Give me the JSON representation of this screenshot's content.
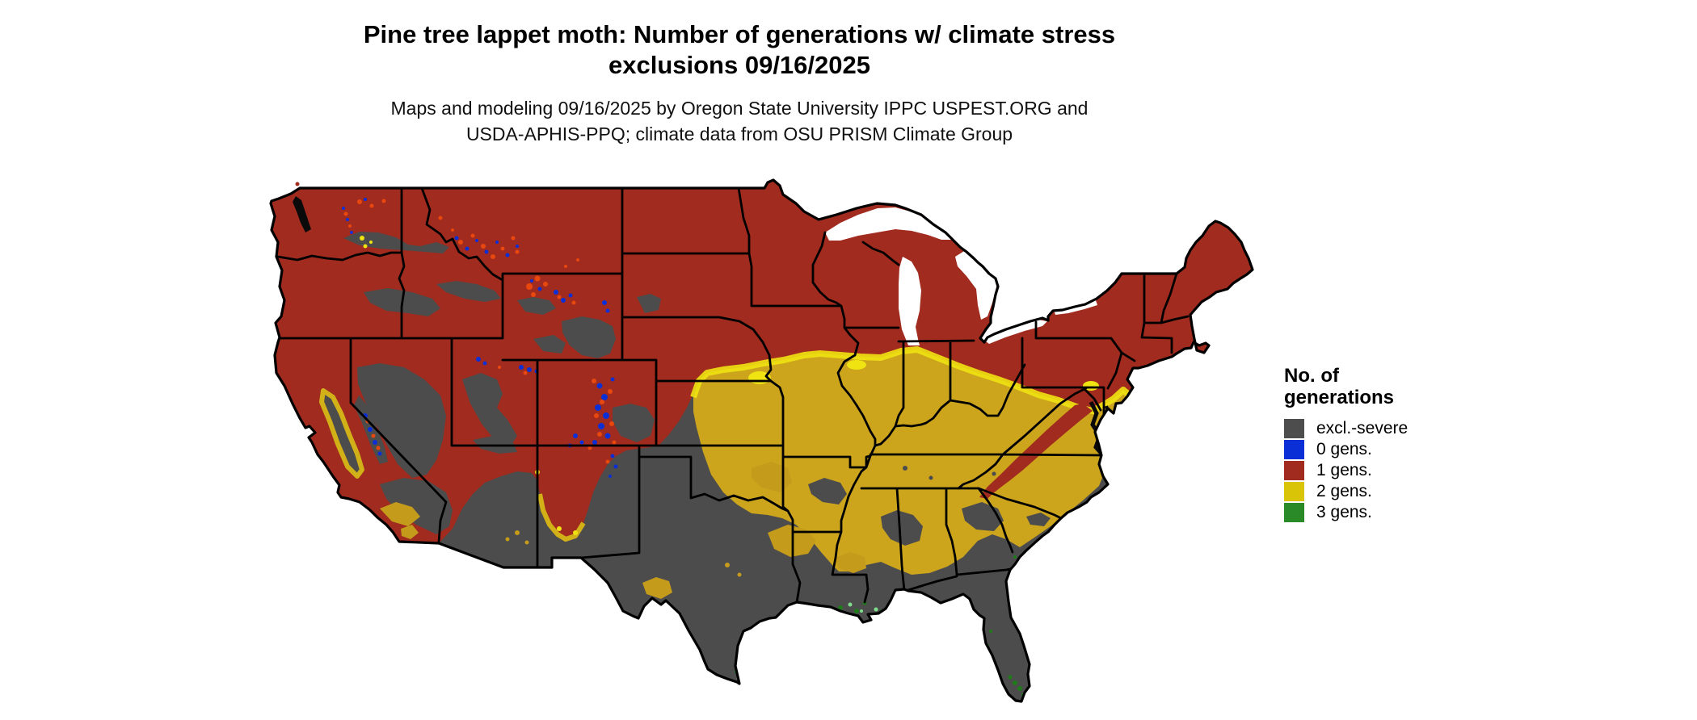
{
  "title": {
    "line1": "Pine tree lappet moth: Number of generations w/ climate stress",
    "line2": "exclusions 09/16/2025"
  },
  "subtitle": {
    "line1": "Maps and modeling 09/16/2025 by Oregon State University IPPC USPEST.ORG and",
    "line2": "USDA-APHIS-PPQ; climate data from OSU PRISM Climate Group"
  },
  "map": {
    "alt": "Map of the continental United States showing modeled number of pine tree lappet moth generations with climate stress exclusions",
    "date": "09/16/2025",
    "colors": {
      "excl_severe": "#4C4C4C",
      "gens0": "#0B2FD6",
      "gens1": "#A02B1E",
      "gens2": "#CCA51D",
      "gens2_bright": "#EFE312",
      "gens3": "#1F7A1A",
      "gens3_light": "#7FDC8C",
      "border": "#000000",
      "water": "#FFFFFF"
    }
  },
  "legend": {
    "title_line1": "No. of",
    "title_line2": "generations",
    "items": [
      {
        "label": "excl.-severe",
        "color": "#4D4D4D"
      },
      {
        "label": "0 gens.",
        "color": "#0B2FD6"
      },
      {
        "label": "1 gens.",
        "color": "#A02B1E"
      },
      {
        "label": "2 gens.",
        "color": "#D9C408"
      },
      {
        "label": "3 gens.",
        "color": "#2B8A28"
      }
    ]
  }
}
